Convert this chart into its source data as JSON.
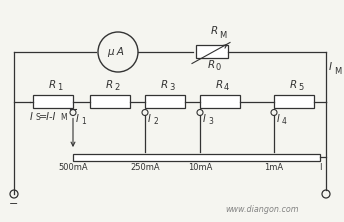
{
  "bg_color": "#f5f5f0",
  "line_color": "#333333",
  "text_color": "#333333",
  "watermark": "www.diangon.com",
  "res_labels": [
    "R1",
    "R2",
    "R3",
    "R4",
    "R5"
  ],
  "res_subs": [
    "1",
    "2",
    "3",
    "4",
    "5"
  ],
  "cur_labels": [
    "I",
    "I",
    "I",
    "I"
  ],
  "cur_subs": [
    "1",
    "2",
    "3",
    "4"
  ],
  "scale_labels": [
    "500mA",
    "250mA",
    "10mA",
    "1mA",
    "I"
  ],
  "gal_label": "μ A",
  "rm_label": "R",
  "rm_sub": "M",
  "r0_label": "R",
  "r0_sub": "0",
  "im_label": "I",
  "im_sub": "M",
  "is_label": "I",
  "is_sub": "S",
  "is_eq": "=I-I",
  "is_eq_sub": "M"
}
